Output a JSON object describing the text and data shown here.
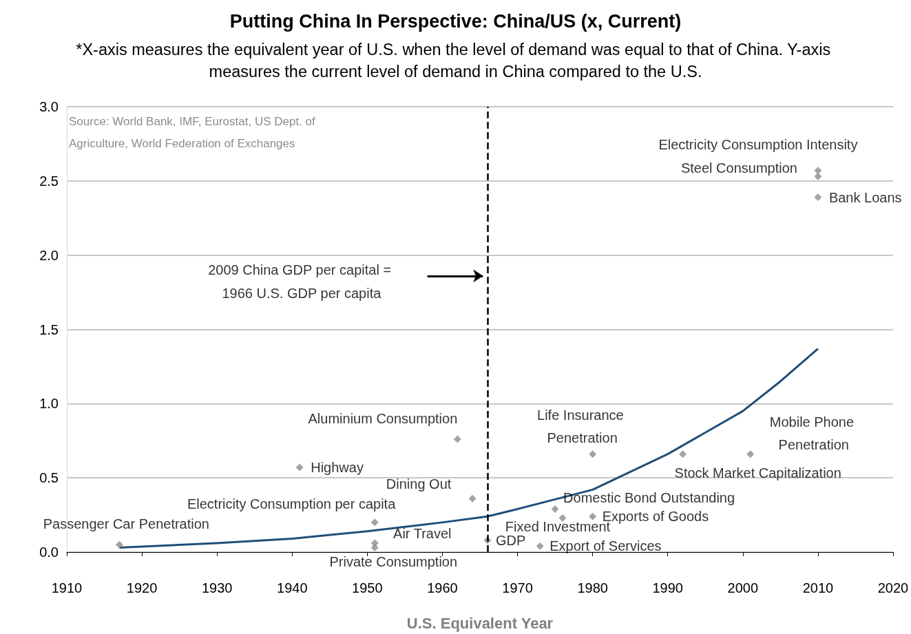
{
  "chart_data": {
    "type": "scatter",
    "title": "Putting China In Perspective: China/US (x, Current)",
    "subtitle": "*X-axis measures the equivalent year of U.S. when the level of demand was equal to that of China. Y-axis measures the current level of demand in China compared to the U.S.",
    "xlabel": "U.S. Equivalent Year",
    "xlim": [
      1910,
      2020
    ],
    "xticks": [
      1910,
      1920,
      1930,
      1940,
      1950,
      1960,
      1970,
      1980,
      1990,
      2000,
      2010,
      2020
    ],
    "ylim": [
      0,
      3
    ],
    "yticks": [
      {
        "value": 0,
        "label": "0.0"
      },
      {
        "value": 0.5,
        "label": "0.5"
      },
      {
        "value": 1,
        "label": "1.0"
      },
      {
        "value": 1.5,
        "label": "1.5"
      },
      {
        "value": 2,
        "label": "2.0"
      },
      {
        "value": 2.5,
        "label": "2.5"
      },
      {
        "value": 3,
        "label": "3.0"
      }
    ],
    "grid": "y",
    "series": [
      {
        "type": "line",
        "color": "#1f4e79",
        "x": [
          1917,
          1930,
          1940,
          1950,
          1960,
          1966,
          1970,
          1980,
          1990,
          2000,
          2005,
          2010
        ],
        "values": [
          0.03,
          0.06,
          0.09,
          0.14,
          0.2,
          0.24,
          0.29,
          0.42,
          0.66,
          0.95,
          1.15,
          1.37
        ]
      },
      {
        "marker": "diamond",
        "color": "#8c8c8c",
        "x": [
          1917,
          1951,
          1951,
          1951,
          1941,
          1962,
          1964,
          1976,
          1966,
          1973,
          1975,
          1980,
          1980,
          1992,
          2001,
          2010,
          2010,
          2010
        ],
        "values": [
          0.05,
          0.2,
          0.06,
          0.03,
          0.57,
          0.76,
          0.36,
          0.23,
          0.08,
          0.04,
          0.29,
          0.24,
          0.66,
          0.66,
          0.66,
          2.57,
          2.53,
          2.39
        ]
      }
    ],
    "ref_lines": [
      {
        "axis": "x",
        "value": 1966,
        "label": "2009 China GDP per capital = 1966 U.S. GDP per capita",
        "line_style": "dashed",
        "color": "#000000"
      }
    ],
    "annotations": [
      "Source: World Bank, IMF, Eurostat, US Dept. of Agriculture, World Federation of Exchanges",
      {
        "text": "Passenger Car Penetration",
        "x": 1917,
        "y": 0.05
      },
      {
        "text": "Electricity Consumption per capita",
        "x": 1951,
        "y": 0.2
      },
      {
        "text": "Air Travel",
        "x": 1951,
        "y": 0.06
      },
      {
        "text": "Private Consumption",
        "x": 1951,
        "y": 0.03
      },
      {
        "text": "Highway",
        "x": 1941,
        "y": 0.57
      },
      {
        "text": "Aluminium Consumption",
        "x": 1962,
        "y": 0.76
      },
      {
        "text": "Dining Out",
        "x": 1964,
        "y": 0.36
      },
      {
        "text": "Fixed Investment",
        "x": 1976,
        "y": 0.23
      },
      {
        "text": "GDP",
        "x": 1966,
        "y": 0.08
      },
      {
        "text": "Export of Services",
        "x": 1973,
        "y": 0.04
      },
      {
        "text": "Domestic Bond Outstanding",
        "x": 1975,
        "y": 0.29
      },
      {
        "text": "Exports of Goods",
        "x": 1980,
        "y": 0.24
      },
      {
        "text": "Life Insurance Penetration",
        "x": 1980,
        "y": 0.66
      },
      {
        "text": "Stock Market Capitalization",
        "x": 1992,
        "y": 0.66
      },
      {
        "text": "Mobile Phone Penetration",
        "x": 2001,
        "y": 0.66
      },
      {
        "text": "Electricity Consumption Intensity",
        "x": 2010,
        "y": 2.57
      },
      {
        "text": "Steel Consumption",
        "x": 2010,
        "y": 2.53
      },
      {
        "text": "Bank Loans",
        "x": 2010,
        "y": 2.39
      }
    ]
  }
}
